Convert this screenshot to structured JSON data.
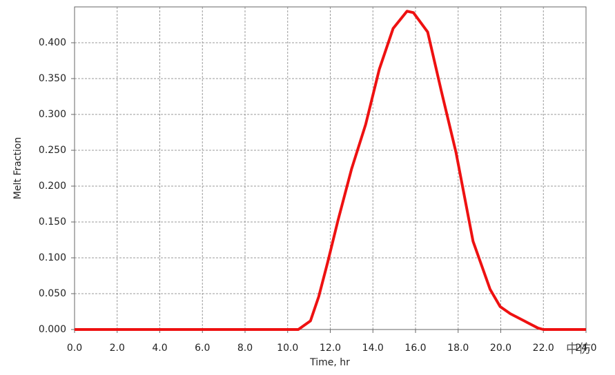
{
  "chart_data": {
    "type": "line",
    "x_label": "Time, hr",
    "y_label": "Melt Fraction",
    "watermark": "中仿",
    "xlim": [
      0,
      24
    ],
    "ylim": [
      0,
      0.45
    ],
    "xticks": [
      {
        "value": 0,
        "label": "0.0"
      },
      {
        "value": 2,
        "label": "2.0"
      },
      {
        "value": 4,
        "label": "4.0"
      },
      {
        "value": 6,
        "label": "6.0"
      },
      {
        "value": 8,
        "label": "8.0"
      },
      {
        "value": 10,
        "label": "10.0"
      },
      {
        "value": 12,
        "label": "12.0"
      },
      {
        "value": 14,
        "label": "14.0"
      },
      {
        "value": 16,
        "label": "16.0"
      },
      {
        "value": 18,
        "label": "18.0"
      },
      {
        "value": 20,
        "label": "20.0"
      },
      {
        "value": 22,
        "label": "22.0"
      },
      {
        "value": 24,
        "label": "24.0"
      }
    ],
    "yticks": [
      {
        "value": 0,
        "label": "0.000"
      },
      {
        "value": 0.05,
        "label": "0.050"
      },
      {
        "value": 0.1,
        "label": "0.100"
      },
      {
        "value": 0.15,
        "label": "0.150"
      },
      {
        "value": 0.2,
        "label": "0.200"
      },
      {
        "value": 0.25,
        "label": "0.250"
      },
      {
        "value": 0.3,
        "label": "0.300"
      },
      {
        "value": 0.35,
        "label": "0.350"
      },
      {
        "value": 0.4,
        "label": "0.400"
      }
    ],
    "grid": true,
    "series": [
      {
        "color": "#ee1111",
        "x": [
          0,
          2,
          4,
          6,
          8,
          10,
          10.5,
          11.07,
          11.46,
          11.88,
          12.36,
          13.0,
          13.66,
          14.3,
          14.95,
          15.6,
          15.9,
          16.57,
          17.2,
          17.9,
          18.7,
          19.5,
          19.97,
          20.45,
          21.1,
          21.75,
          22.0,
          24
        ],
        "values": [
          0,
          0,
          0,
          0,
          0,
          0,
          0,
          0.012,
          0.046,
          0.094,
          0.152,
          0.224,
          0.286,
          0.363,
          0.42,
          0.444,
          0.442,
          0.415,
          0.334,
          0.247,
          0.123,
          0.056,
          0.032,
          0.022,
          0.012,
          0.002,
          0,
          0
        ]
      }
    ]
  }
}
